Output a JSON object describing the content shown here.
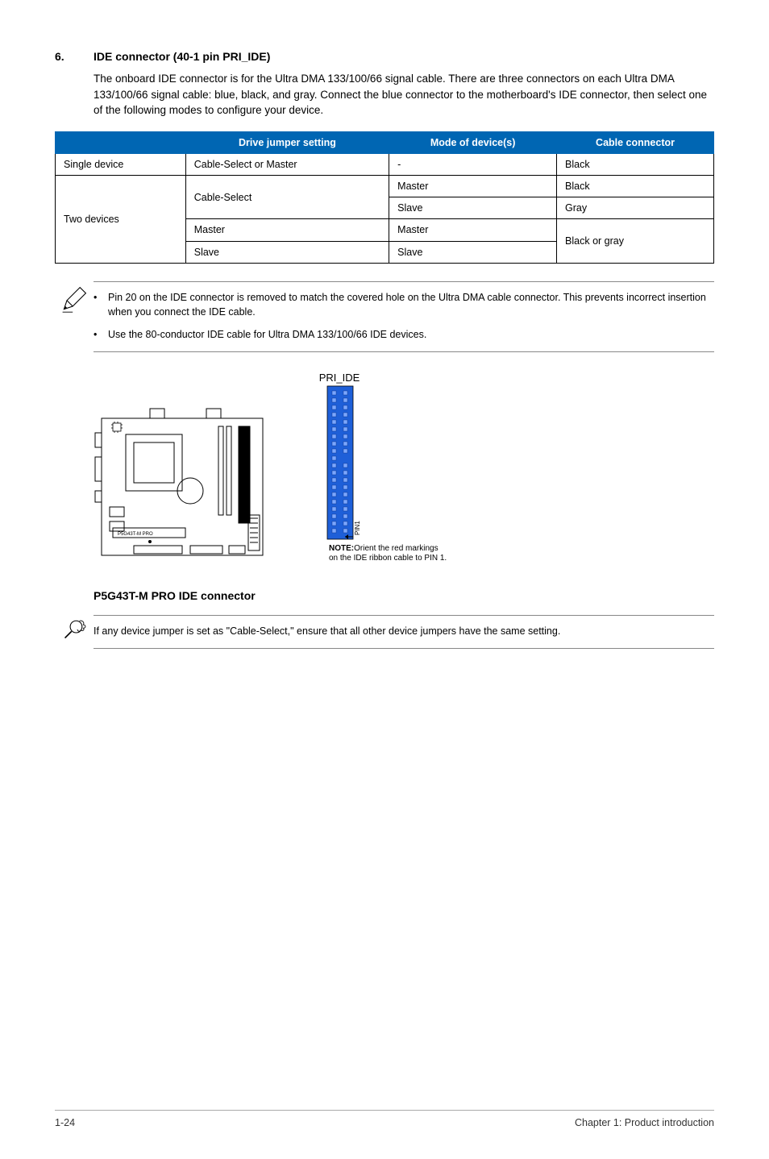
{
  "section": {
    "number": "6.",
    "title": "IDE connector (40-1 pin PRI_IDE)",
    "body": "The onboard IDE connector is for the Ultra DMA 133/100/66 signal cable. There are three connectors on each Ultra DMA 133/100/66 signal cable: blue, black, and gray. Connect the blue connector to the motherboard's IDE connector, then select one of the following modes to configure your device."
  },
  "table": {
    "headers": [
      "",
      "Drive jumper setting",
      "Mode of device(s)",
      "Cable connector"
    ],
    "header_bg": "#0066b3",
    "header_fg": "#ffffff",
    "rows_raw": {
      "single_label": "Single device",
      "single_jumper": "Cable-Select or Master",
      "single_mode": "-",
      "single_cable": "Black",
      "two_label": "Two devices",
      "cs_label": "Cable-Select",
      "cs_master_mode": "Master",
      "cs_master_cable": "Black",
      "cs_slave_mode": "Slave",
      "cs_slave_cable": "Gray",
      "m_label": "Master",
      "m_mode": "Master",
      "s_label": "Slave",
      "s_mode": "Slave",
      "bog_cable": "Black or gray"
    }
  },
  "note1": {
    "bullets": [
      "Pin 20 on the IDE connector is removed to match the covered hole on the Ultra DMA cable connector. This prevents incorrect insertion when you connect the IDE cable.",
      "Use the 80-conductor IDE cable for Ultra DMA 133/100/66 IDE devices."
    ]
  },
  "diagram": {
    "header_label": "PRI_IDE",
    "pin_label": "PIN1",
    "board_label": "P5G43T-M PRO",
    "note_label": "NOTE:",
    "note_text": "Orient the red markings",
    "note_text2": "on the IDE ribbon cable to PIN 1.",
    "caption": "P5G43T-M PRO IDE connector",
    "colors": {
      "connector_fill": "#1e5fd8",
      "connector_pin": "#7aa6ff",
      "board_stroke": "#000000"
    }
  },
  "note2": {
    "text": "If any device jumper is set as \"Cable-Select,\" ensure that all other device jumpers have the same setting."
  },
  "footer": {
    "left": "1-24",
    "right": "Chapter 1: Product introduction"
  }
}
